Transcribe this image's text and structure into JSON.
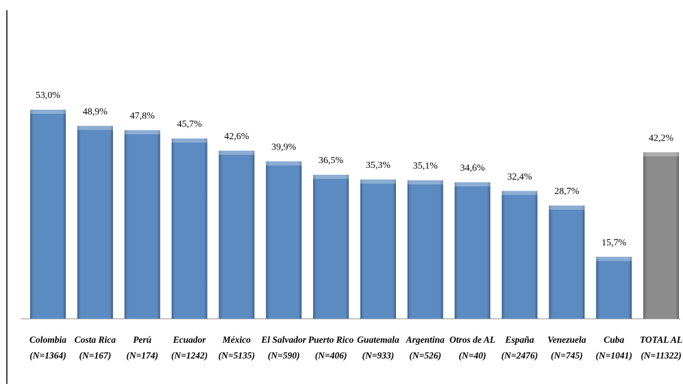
{
  "chart_data": {
    "type": "bar",
    "categories": [
      [
        "Colombia",
        "(N=1364)"
      ],
      [
        "Costa Rica",
        "(N=167)"
      ],
      [
        "Perú",
        "(N=174)"
      ],
      [
        "Ecuador",
        "(N=1242)"
      ],
      [
        "México",
        "(N=5135)"
      ],
      [
        "El Salvador",
        "(N=590)"
      ],
      [
        "Puerto Rico",
        "(N=406)"
      ],
      [
        "Guatemala",
        "(N=933)"
      ],
      [
        "Argentina",
        "(N=526)"
      ],
      [
        "Otros de AL",
        "(N=40)"
      ],
      [
        "España",
        "(N=2476)"
      ],
      [
        "Venezuela",
        "(N=745)"
      ],
      [
        "Cuba",
        "(N=1041)"
      ],
      [
        "TOTAL AL",
        "(N=11322)"
      ]
    ],
    "values": [
      53.0,
      48.9,
      47.8,
      45.7,
      42.6,
      39.9,
      36.5,
      35.3,
      35.1,
      34.6,
      32.4,
      28.7,
      15.7,
      42.2
    ],
    "value_labels": [
      "53,0%",
      "48,9%",
      "47,8%",
      "45,7%",
      "42,6%",
      "39,9%",
      "36,5%",
      "35,3%",
      "35,1%",
      "34,6%",
      "32,4%",
      "28,7%",
      "15,7%",
      "42,2%"
    ],
    "colors": [
      "#4a7ebb",
      "#4a7ebb",
      "#4a7ebb",
      "#4a7ebb",
      "#4a7ebb",
      "#4a7ebb",
      "#4a7ebb",
      "#4a7ebb",
      "#4a7ebb",
      "#4a7ebb",
      "#4a7ebb",
      "#4a7ebb",
      "#4a7ebb",
      "#7f7f7f"
    ]
  }
}
